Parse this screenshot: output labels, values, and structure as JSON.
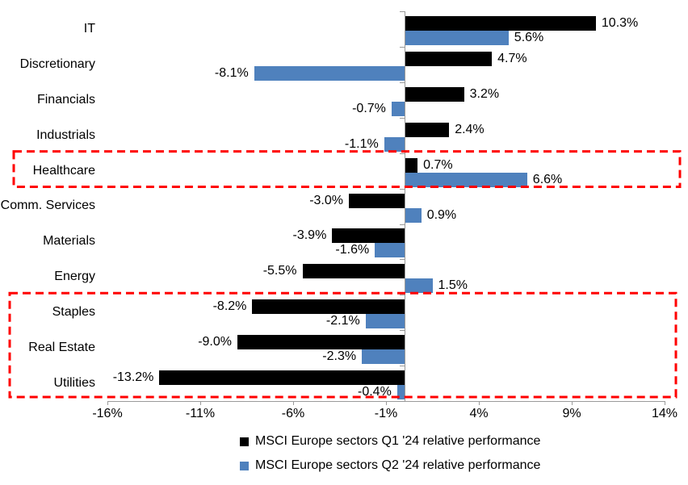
{
  "chart_data": {
    "type": "bar",
    "orientation": "horizontal",
    "title": "",
    "categories": [
      "IT",
      "Discretionary",
      "Financials",
      "Industrials",
      "Healthcare",
      "Comm. Services",
      "Materials",
      "Energy",
      "Staples",
      "Real Estate",
      "Utilities"
    ],
    "series": [
      {
        "name": "MSCI Europe sectors Q1 '24 relative performance",
        "color": "#000000",
        "values": [
          10.3,
          4.7,
          3.2,
          2.4,
          0.7,
          -3.0,
          -3.9,
          -5.5,
          -8.2,
          -9.0,
          -13.2
        ],
        "labels": [
          "10.3%",
          "4.7%",
          "3.2%",
          "2.4%",
          "0.7%",
          "-3.0%",
          "-3.9%",
          "-5.5%",
          "-8.2%",
          "-9.0%",
          "-13.2%"
        ]
      },
      {
        "name": "MSCI Europe sectors Q2 '24 relative performance",
        "color": "#4F81BD",
        "values": [
          5.6,
          -8.1,
          -0.7,
          -1.1,
          6.6,
          0.9,
          -1.6,
          1.5,
          -2.1,
          -2.3,
          -0.4
        ],
        "labels": [
          "5.6%",
          "-8.1%",
          "-0.7%",
          "-1.1%",
          "6.6%",
          "0.9%",
          "-1.6%",
          "1.5%",
          "-2.1%",
          "-2.3%",
          "-0.4%"
        ]
      }
    ],
    "x_axis": {
      "ticks": [
        "-16%",
        "-11%",
        "-6%",
        "-1%",
        "4%",
        "9%",
        "14%"
      ],
      "tick_values": [
        -16,
        -11,
        -6,
        -1,
        4,
        9,
        14
      ],
      "min": -16,
      "max": 14
    },
    "grid": false,
    "legend_position": "bottom",
    "highlight_color": "#FF0000",
    "highlights": [
      {
        "sectors": [
          "Healthcare"
        ],
        "style": "red-dashed-box"
      },
      {
        "sectors": [
          "Staples",
          "Real Estate",
          "Utilities"
        ],
        "style": "red-dashed-box"
      }
    ]
  }
}
